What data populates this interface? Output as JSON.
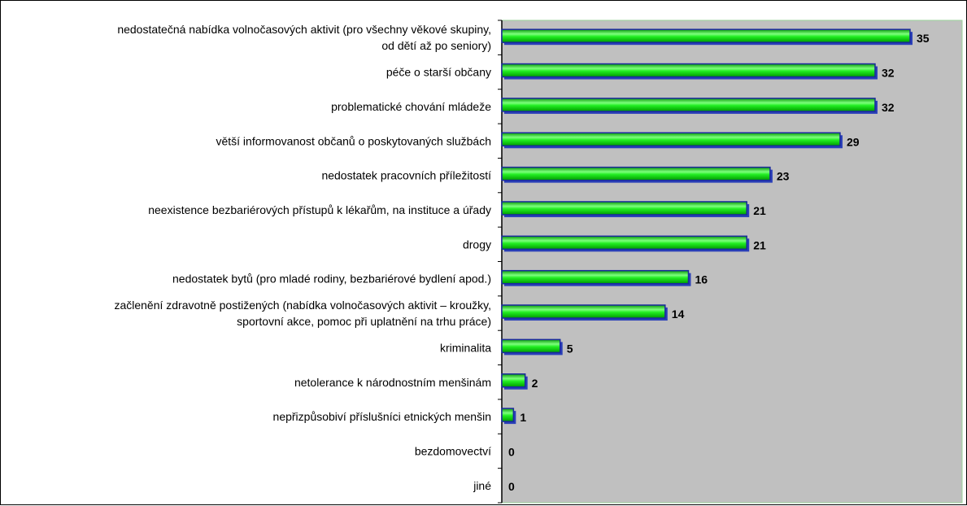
{
  "chart_data": {
    "type": "bar",
    "orientation": "horizontal",
    "categories": [
      [
        "nedostatečná nabídka volnočasových aktivit (pro všechny věkové skupiny,",
        "od dětí až po seniory)"
      ],
      [
        "péče o starší občany"
      ],
      [
        "problematické chování mládeže"
      ],
      [
        "větší informovanost občanů o poskytovaných službách"
      ],
      [
        "nedostatek pracovních příležitostí"
      ],
      [
        "neexistence bezbariérových přístupů k lékařům, na instituce a úřady"
      ],
      [
        "drogy"
      ],
      [
        "nedostatek bytů (pro mladé rodiny, bezbariérové bydlení apod.)"
      ],
      [
        "začlenění zdravotně postižených (nabídka volnočasových aktivit – kroužky,",
        "sportovní akce, pomoc při uplatnění na trhu práce)"
      ],
      [
        "kriminalita"
      ],
      [
        "netolerance k národnostním menšinám"
      ],
      [
        "nepřizpůsobiví příslušníci etnických menšin"
      ],
      [
        "bezdomovectví"
      ],
      [
        "jiné"
      ]
    ],
    "values": [
      35,
      32,
      32,
      29,
      23,
      21,
      21,
      16,
      14,
      5,
      2,
      1,
      0,
      0
    ],
    "xlim": [
      0,
      35
    ],
    "grid": false,
    "legend": "none",
    "colors": {
      "bar_fill": "#00e000",
      "bar_highlight": "#a8ffa8",
      "bar_border": "#1a2a9c",
      "bar_depth": "#2a3fb8",
      "plot_background": "#c0c0c0",
      "plot_border": "#9ad29a",
      "axis": "#000000"
    }
  }
}
